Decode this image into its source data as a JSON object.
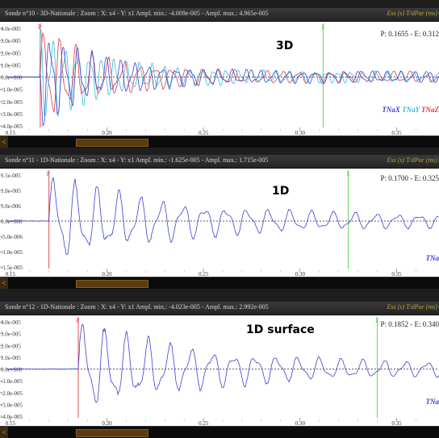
{
  "colors": {
    "frame": "#1e1e1e",
    "plot_bg": "#ffffff",
    "p_marker": "#e24d4d",
    "e_marker": "#5fd95f",
    "trace_blue": "#3b3fd6",
    "trace_red": "#e03a3a",
    "trace_cyan": "#33bde0",
    "accent_orange": "#c8782a"
  },
  "panels": [
    {
      "title": "Sonde n°10 - 3D-Nationale : Zoom : X: x4 - Y: x1  Ampl. min.: -4.009e-005 - Ampl. max.: 4.965e-005",
      "title_right": "Ess (s)  T/dPar (ms)",
      "readout": "P: 0.1655 - E: 0.312",
      "label": "3D",
      "yticks": [
        "4.0e-005",
        "3.0e-005",
        "2.0e-005",
        "1.0e-005",
        "0.0e+000",
        "-1.0e-005",
        "-2.0e-005",
        "-3.0e-005",
        "-4.0e-005"
      ],
      "xticks": [
        "0.15",
        "0.20",
        "0.25",
        "0.30",
        "0.35"
      ],
      "legend": [
        "TNaX",
        "TNaY",
        "TNaZ"
      ],
      "p_label": "P",
      "e_label": "E",
      "p_time": 0.1655,
      "e_time": 0.312,
      "amp_max": 4.965e-05,
      "amp_min": -4.009e-05
    },
    {
      "title": "Sonde n°11 - 1D-Nationale : Zoom : X: x4 - Y: x1  Ampl. min.: -1.625e-005 - Ampl. max.: 1.715e-005",
      "title_right": "Ess (s)  T/dPar (ms)",
      "readout": "P: 0.1700 - E: 0.325",
      "label": "1D",
      "yticks": [
        "1.5e-005",
        "1.0e-005",
        "5.0e-006",
        "0.0e+000",
        "-5.0e-006",
        "-1.0e-005",
        "-1.5e-005"
      ],
      "xticks": [
        "0.15",
        "0.20",
        "0.25",
        "0.30",
        "0.35"
      ],
      "legend": [
        "TNa"
      ],
      "p_label": "P",
      "e_label": "E",
      "p_time": 0.17,
      "e_time": 0.325,
      "amp_max": 1.715e-05,
      "amp_min": -1.625e-05
    },
    {
      "title": "Sonde n°12 - 1D-Nationale : Zoom : X: x4 - Y: x1  Ampl. min.: -4.023e-005 - Ampl. max.: 2.992e-005",
      "title_right": "Ess (s)  T/dPar (ms)",
      "readout": "P: 0.1852 - E: 0.340",
      "label": "1D surface",
      "yticks": [
        "4.0e-005",
        "3.0e-005",
        "2.0e-005",
        "1.0e-005",
        "0.0e+000",
        "-1.0e-005",
        "-2.0e-005",
        "-3.0e-005",
        "-4.0e-005"
      ],
      "xticks": [
        "0.15",
        "0.20",
        "0.25",
        "0.30",
        "0.35"
      ],
      "legend": [
        "TNa"
      ],
      "p_label": "P",
      "e_label": "E",
      "p_time": 0.1852,
      "e_time": 0.34,
      "amp_max": 2.992e-05,
      "amp_min": -4.023e-05
    }
  ],
  "scrollbar": {
    "left_arrow": "<"
  }
}
